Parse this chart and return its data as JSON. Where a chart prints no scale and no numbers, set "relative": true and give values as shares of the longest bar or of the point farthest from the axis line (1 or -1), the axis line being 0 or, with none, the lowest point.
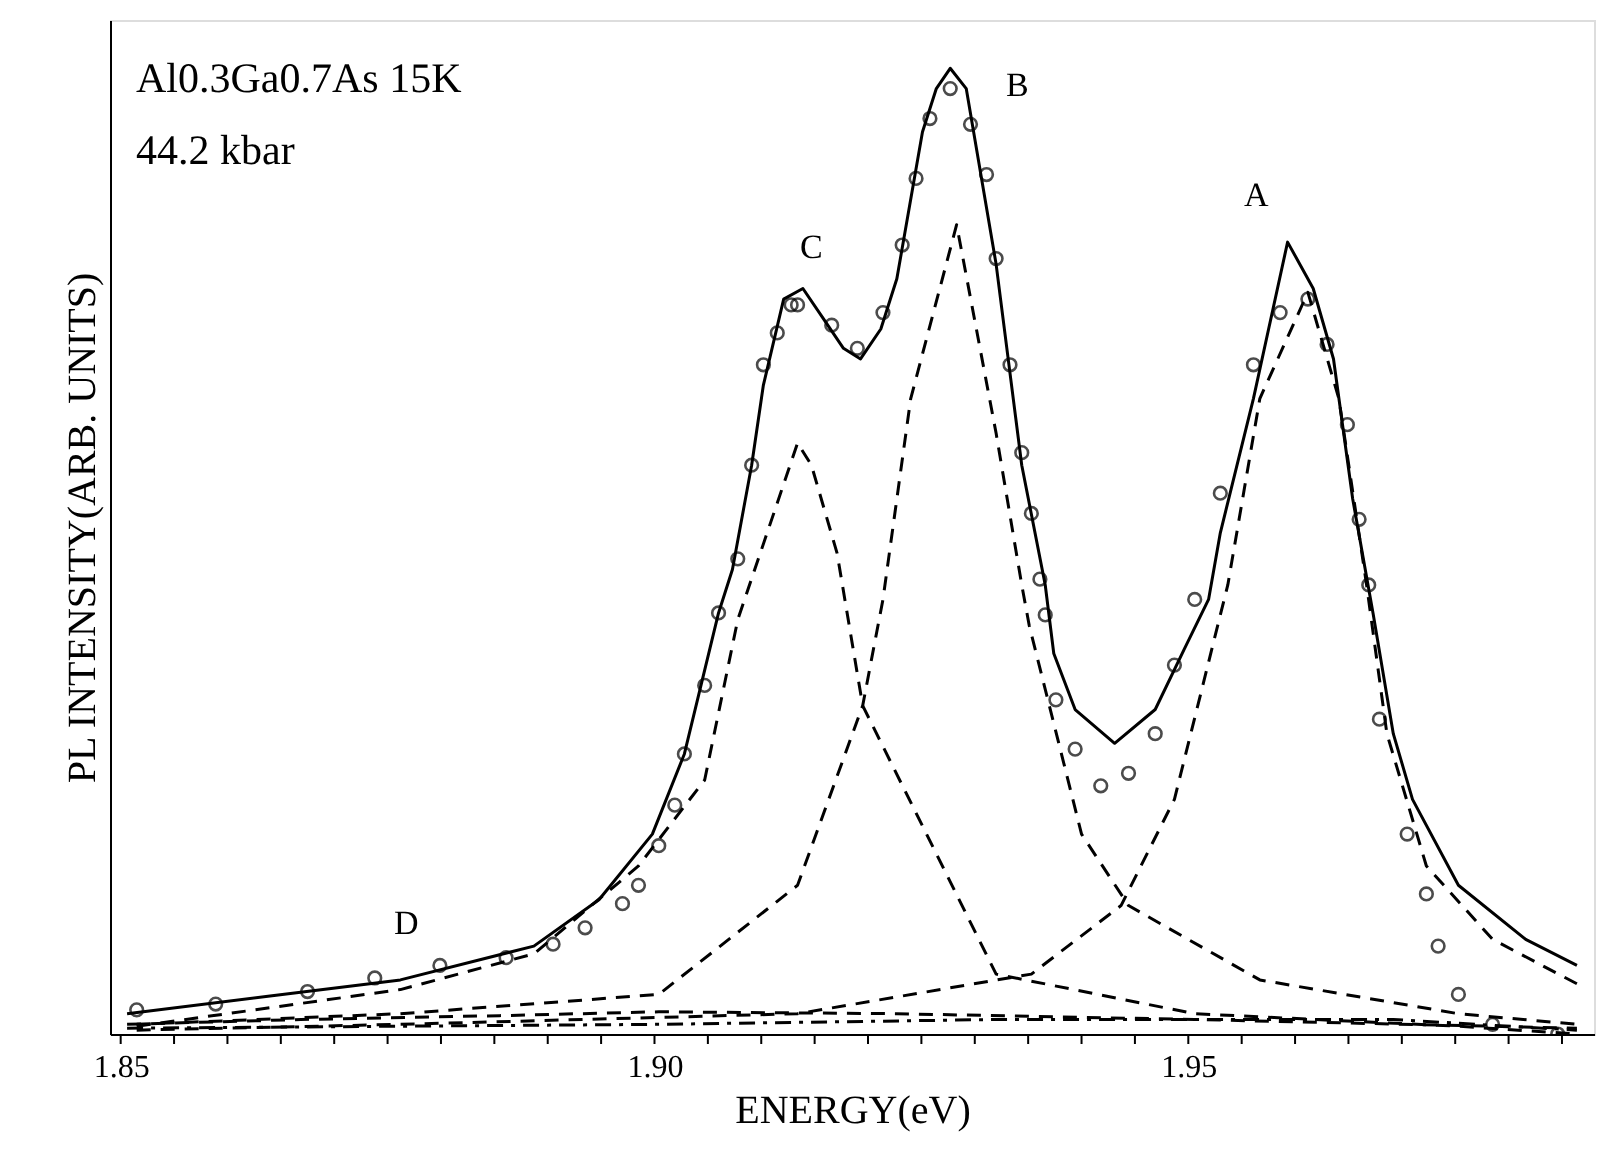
{
  "chart_data": {
    "type": "line",
    "relative": true,
    "xlabel": "ENERGY(eV)",
    "ylabel": "PL INTENSITY(ARB. UNITS)",
    "xlim": [
      1.849,
      1.988
    ],
    "xticks": [
      {
        "value": 1.85,
        "label": "1.85"
      },
      {
        "value": 1.855,
        "label": null
      },
      {
        "value": 1.86,
        "label": null
      },
      {
        "value": 1.865,
        "label": null
      },
      {
        "value": 1.87,
        "label": null
      },
      {
        "value": 1.875,
        "label": null
      },
      {
        "value": 1.88,
        "label": null
      },
      {
        "value": 1.885,
        "label": null
      },
      {
        "value": 1.89,
        "label": null
      },
      {
        "value": 1.895,
        "label": null
      },
      {
        "value": 1.9,
        "label": "1.90"
      },
      {
        "value": 1.905,
        "label": null
      },
      {
        "value": 1.91,
        "label": null
      },
      {
        "value": 1.915,
        "label": null
      },
      {
        "value": 1.92,
        "label": null
      },
      {
        "value": 1.925,
        "label": null
      },
      {
        "value": 1.93,
        "label": null
      },
      {
        "value": 1.935,
        "label": null
      },
      {
        "value": 1.94,
        "label": null
      },
      {
        "value": 1.945,
        "label": null
      },
      {
        "value": 1.95,
        "label": "1.95"
      },
      {
        "value": 1.955,
        "label": null
      },
      {
        "value": 1.96,
        "label": null
      },
      {
        "value": 1.965,
        "label": null
      },
      {
        "value": 1.97,
        "label": null
      },
      {
        "value": 1.975,
        "label": null
      },
      {
        "value": 1.98,
        "label": null
      },
      {
        "value": 1.985,
        "label": null
      }
    ],
    "grid": false,
    "series": [
      {
        "type": "scatter",
        "marker": "circle",
        "color": "#000000",
        "x": [
          1.8515,
          1.8589,
          1.8675,
          1.8738,
          1.8799,
          1.8861,
          1.8905,
          1.8935,
          1.897,
          1.8985,
          1.9004,
          1.9019,
          1.9028,
          1.9047,
          1.906,
          1.9078,
          1.9091,
          1.9102,
          1.9115,
          1.9128,
          1.9134,
          1.9166,
          1.919,
          1.9214,
          1.9232,
          1.9245,
          1.9258,
          1.9277,
          1.9296,
          1.9311,
          1.932,
          1.9333,
          1.9344,
          1.9353,
          1.9361,
          1.9366,
          1.9376,
          1.9394,
          1.9418,
          1.9444,
          1.9469,
          1.9487,
          1.9506,
          1.953,
          1.9561,
          1.9586,
          1.9612,
          1.963,
          1.9649,
          1.966,
          1.9669,
          1.9679,
          1.9705,
          1.9723,
          1.9734,
          1.9753,
          1.9785,
          1.9846
        ],
        "values": [
          0.025,
          0.031,
          0.044,
          0.058,
          0.071,
          0.079,
          0.093,
          0.11,
          0.135,
          0.154,
          0.195,
          0.237,
          0.29,
          0.361,
          0.436,
          0.492,
          0.589,
          0.693,
          0.726,
          0.755,
          0.755,
          0.734,
          0.71,
          0.747,
          0.817,
          0.886,
          0.948,
          0.979,
          0.942,
          0.89,
          0.803,
          0.693,
          0.602,
          0.539,
          0.471,
          0.434,
          0.346,
          0.295,
          0.257,
          0.27,
          0.311,
          0.382,
          0.45,
          0.56,
          0.693,
          0.747,
          0.761,
          0.714,
          0.631,
          0.533,
          0.465,
          0.326,
          0.207,
          0.145,
          0.091,
          0.041,
          0.01,
          0.0
        ]
      },
      {
        "line_style": "solid",
        "color": "#000000",
        "x": [
          1.8506,
          1.8638,
          1.8762,
          1.8887,
          1.8948,
          1.8998,
          1.9028,
          1.906,
          1.9073,
          1.9091,
          1.9102,
          1.9121,
          1.9139,
          1.9158,
          1.9177,
          1.9193,
          1.9212,
          1.9227,
          1.9251,
          1.9264,
          1.9277,
          1.9292,
          1.932,
          1.9344,
          1.9366,
          1.9374,
          1.9394,
          1.9431,
          1.9469,
          1.9496,
          1.9519,
          1.953,
          1.9561,
          1.9593,
          1.9617,
          1.9636,
          1.9654,
          1.9673,
          1.9692,
          1.971,
          1.9753,
          1.9816,
          1.9864
        ],
        "values": [
          0.021,
          0.039,
          0.056,
          0.091,
          0.139,
          0.207,
          0.29,
          0.436,
          0.481,
          0.589,
          0.672,
          0.761,
          0.772,
          0.741,
          0.71,
          0.699,
          0.73,
          0.782,
          0.934,
          0.979,
          1.0,
          0.979,
          0.797,
          0.589,
          0.465,
          0.394,
          0.336,
          0.301,
          0.336,
          0.398,
          0.45,
          0.519,
          0.658,
          0.82,
          0.772,
          0.699,
          0.554,
          0.436,
          0.311,
          0.243,
          0.154,
          0.098,
          0.071
        ]
      },
      {
        "line_style": "dashed",
        "color": "#000000",
        "x": [
          1.8515,
          1.8762,
          1.8887,
          1.8985,
          1.9047,
          1.9078,
          1.9134,
          1.9147,
          1.9171,
          1.9195,
          1.932,
          1.9506,
          1.9753,
          1.9864
        ],
        "values": [
          0.008,
          0.046,
          0.083,
          0.174,
          0.263,
          0.429,
          0.612,
          0.589,
          0.498,
          0.34,
          0.062,
          0.021,
          0.008,
          0.0
        ]
      },
      {
        "line_style": "dashed",
        "color": "#000000",
        "x": [
          1.8515,
          1.8762,
          1.9004,
          1.9134,
          1.9195,
          1.9214,
          1.924,
          1.9283,
          1.932,
          1.9344,
          1.9351,
          1.94,
          1.9444,
          1.9567,
          1.9753,
          1.9864
        ],
        "values": [
          0.01,
          0.021,
          0.041,
          0.154,
          0.34,
          0.45,
          0.658,
          0.838,
          0.622,
          0.465,
          0.423,
          0.207,
          0.133,
          0.056,
          0.021,
          0.01
        ]
      },
      {
        "line_style": "dashed",
        "color": "#000000",
        "x": [
          1.8515,
          1.8762,
          1.9134,
          1.9353,
          1.9437,
          1.9487,
          1.9537,
          1.9567,
          1.9612,
          1.9641,
          1.9667,
          1.9686,
          1.9723,
          1.9785,
          1.9864
        ],
        "values": [
          0.004,
          0.01,
          0.021,
          0.062,
          0.133,
          0.243,
          0.465,
          0.658,
          0.768,
          0.658,
          0.465,
          0.311,
          0.174,
          0.098,
          0.052
        ]
      },
      {
        "line_style": "dashed",
        "color": "#000000",
        "x": [
          1.8506,
          1.8669,
          1.8855,
          1.9004,
          1.9227,
          1.9506,
          1.9864
        ],
        "values": [
          0.01,
          0.015,
          0.019,
          0.023,
          0.021,
          0.015,
          0.006
        ]
      },
      {
        "line_style": "dashdot",
        "color": "#000000",
        "x": [
          1.8506,
          1.9004,
          1.932,
          1.9692,
          1.9864
        ],
        "values": [
          0.006,
          0.01,
          0.015,
          0.015,
          0.004
        ]
      }
    ],
    "annotations": [
      "Al0.3Ga0.7As   15K",
      "44.2 kbar",
      "A",
      "B",
      "C",
      "D"
    ]
  }
}
